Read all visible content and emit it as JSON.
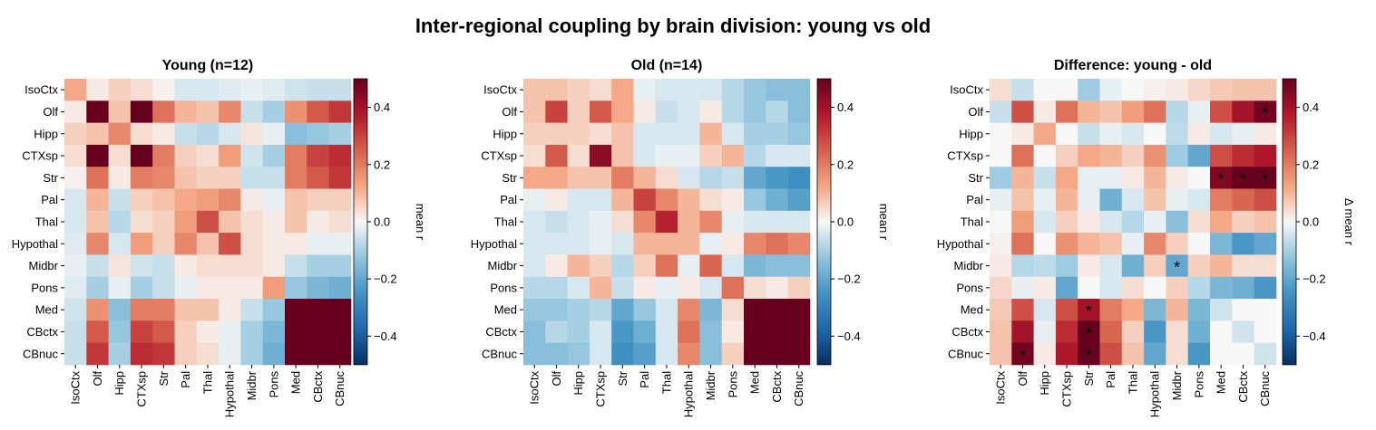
{
  "figure": {
    "title": "Inter-regional coupling by brain division: young vs old"
  },
  "chart_data": [
    {
      "type": "heatmap",
      "title": "Young (n=12)",
      "regions": [
        "IsoCtx",
        "Olf",
        "Hipp",
        "CTXsp",
        "Str",
        "Pal",
        "Thal",
        "Hypothal",
        "Midbr",
        "Pons",
        "Med",
        "CBctx",
        "CBnuc"
      ],
      "vmin": -0.5,
      "vmax": 0.5,
      "colorbar_label": "mean r",
      "colorbar_ticks": [
        -0.4,
        -0.2,
        0.0,
        0.2,
        0.4
      ],
      "colorbar_tick_labels": [
        "−0.4",
        "−0.2",
        "0.0",
        "0.2",
        "0.4"
      ],
      "values": [
        [
          0.12,
          0.02,
          0.06,
          0.04,
          0.01,
          -0.04,
          -0.04,
          -0.03,
          -0.02,
          -0.03,
          -0.05,
          -0.06,
          -0.06
        ],
        [
          0.02,
          0.55,
          0.08,
          0.55,
          0.22,
          0.1,
          0.08,
          0.18,
          -0.06,
          -0.1,
          0.16,
          0.26,
          0.32
        ],
        [
          0.06,
          0.08,
          0.18,
          0.04,
          0.02,
          -0.06,
          -0.08,
          -0.04,
          0.03,
          -0.02,
          -0.14,
          -0.12,
          -0.1
        ],
        [
          0.04,
          0.55,
          0.04,
          0.5,
          0.2,
          0.06,
          0.04,
          0.14,
          -0.05,
          -0.1,
          0.2,
          0.3,
          0.34
        ],
        [
          0.01,
          0.22,
          0.02,
          0.2,
          0.18,
          0.08,
          0.06,
          0.06,
          -0.06,
          -0.06,
          0.2,
          0.26,
          0.32
        ],
        [
          -0.04,
          0.1,
          -0.06,
          0.06,
          0.08,
          0.12,
          0.14,
          0.18,
          0.02,
          -0.02,
          0.08,
          0.06,
          0.06
        ],
        [
          -0.04,
          0.08,
          -0.08,
          0.04,
          0.06,
          0.14,
          0.28,
          0.08,
          0.04,
          0.02,
          0.08,
          0.02,
          0.04
        ],
        [
          -0.03,
          0.18,
          -0.04,
          0.14,
          0.06,
          0.18,
          0.08,
          0.28,
          0.04,
          0.02,
          0.02,
          -0.02,
          -0.02
        ],
        [
          -0.02,
          -0.06,
          0.03,
          -0.05,
          -0.06,
          0.02,
          0.04,
          0.04,
          0.04,
          0.02,
          -0.06,
          -0.1,
          -0.1
        ],
        [
          -0.03,
          -0.1,
          -0.02,
          -0.1,
          -0.06,
          -0.02,
          0.02,
          0.02,
          0.02,
          0.14,
          -0.12,
          -0.16,
          -0.18
        ],
        [
          -0.05,
          0.16,
          -0.14,
          0.2,
          0.2,
          0.08,
          0.08,
          0.02,
          -0.06,
          -0.12,
          0.5,
          0.55,
          0.55
        ],
        [
          -0.06,
          0.26,
          -0.12,
          0.3,
          0.26,
          0.06,
          0.02,
          -0.02,
          -0.1,
          -0.16,
          0.55,
          0.55,
          0.55
        ],
        [
          -0.06,
          0.32,
          -0.1,
          0.34,
          0.32,
          0.06,
          0.04,
          -0.02,
          -0.1,
          -0.18,
          0.55,
          0.55,
          0.55
        ]
      ]
    },
    {
      "type": "heatmap",
      "title": "Old (n=14)",
      "regions": [
        "IsoCtx",
        "Olf",
        "Hipp",
        "CTXsp",
        "Str",
        "Pal",
        "Thal",
        "Hypothal",
        "Midbr",
        "Pons",
        "Med",
        "CBctx",
        "CBnuc"
      ],
      "vmin": -0.5,
      "vmax": 0.5,
      "colorbar_label": "mean r",
      "colorbar_ticks": [
        -0.4,
        -0.2,
        0.0,
        0.2,
        0.4
      ],
      "colorbar_tick_labels": [
        "−0.4",
        "−0.2",
        "0.0",
        "0.2",
        "0.4"
      ],
      "values": [
        [
          0.08,
          0.08,
          0.06,
          0.04,
          0.12,
          -0.02,
          -0.04,
          -0.04,
          -0.04,
          -0.08,
          -0.12,
          -0.14,
          -0.14
        ],
        [
          0.08,
          0.3,
          0.06,
          0.26,
          0.12,
          0.02,
          -0.06,
          -0.04,
          0.02,
          -0.08,
          -0.12,
          -0.08,
          -0.14
        ],
        [
          0.06,
          0.06,
          0.06,
          0.04,
          0.08,
          -0.04,
          -0.04,
          -0.04,
          0.1,
          -0.04,
          -0.1,
          -0.1,
          -0.12
        ],
        [
          0.04,
          0.26,
          0.04,
          0.44,
          0.08,
          -0.04,
          -0.02,
          -0.02,
          0.06,
          0.1,
          -0.08,
          -0.04,
          -0.04
        ],
        [
          0.12,
          0.12,
          0.08,
          0.08,
          0.2,
          0.1,
          0.04,
          -0.04,
          -0.08,
          -0.06,
          -0.2,
          -0.24,
          -0.26
        ],
        [
          -0.02,
          0.02,
          -0.04,
          -0.04,
          0.1,
          0.3,
          0.18,
          0.1,
          0.04,
          0.02,
          -0.12,
          -0.18,
          -0.22
        ],
        [
          -0.04,
          -0.06,
          -0.04,
          -0.02,
          0.04,
          0.18,
          0.36,
          0.1,
          0.18,
          -0.02,
          -0.04,
          -0.04,
          -0.04
        ],
        [
          -0.04,
          -0.04,
          -0.04,
          -0.02,
          -0.04,
          0.1,
          0.1,
          0.1,
          -0.02,
          0.02,
          0.18,
          0.22,
          0.18
        ],
        [
          -0.04,
          0.02,
          0.1,
          0.06,
          -0.08,
          0.06,
          0.22,
          -0.02,
          0.24,
          -0.04,
          -0.16,
          -0.14,
          -0.14
        ],
        [
          -0.08,
          -0.08,
          -0.04,
          0.1,
          -0.06,
          0.02,
          -0.02,
          0.02,
          -0.04,
          0.22,
          0.04,
          0.02,
          0.06
        ],
        [
          -0.12,
          -0.12,
          -0.1,
          -0.08,
          -0.2,
          -0.12,
          -0.04,
          0.18,
          -0.16,
          0.04,
          0.55,
          0.55,
          0.55
        ],
        [
          -0.14,
          -0.08,
          -0.1,
          -0.04,
          -0.24,
          -0.18,
          -0.04,
          0.22,
          -0.14,
          0.02,
          0.55,
          0.55,
          0.55
        ],
        [
          -0.14,
          -0.14,
          -0.12,
          -0.04,
          -0.26,
          -0.22,
          -0.04,
          0.18,
          -0.14,
          0.06,
          0.55,
          0.55,
          0.55
        ]
      ]
    },
    {
      "type": "heatmap",
      "title": "Difference: young - old",
      "regions": [
        "IsoCtx",
        "Olf",
        "Hipp",
        "CTXsp",
        "Str",
        "Pal",
        "Thal",
        "Hypothal",
        "Midbr",
        "Pons",
        "Med",
        "CBctx",
        "CBnuc"
      ],
      "vmin": -0.5,
      "vmax": 0.5,
      "colorbar_label": "Δ mean r",
      "colorbar_ticks": [
        -0.4,
        -0.2,
        0.0,
        0.2,
        0.4
      ],
      "colorbar_tick_labels": [
        "−0.4",
        "−0.2",
        "0.0",
        "0.2",
        "0.4"
      ],
      "significance_marker": "*",
      "significant_cells": [
        [
          1,
          12
        ],
        [
          4,
          10
        ],
        [
          4,
          11
        ],
        [
          4,
          12
        ],
        [
          8,
          8
        ],
        [
          10,
          4
        ],
        [
          11,
          4
        ],
        [
          12,
          1
        ],
        [
          12,
          4
        ]
      ],
      "values": [
        [
          0.04,
          -0.06,
          0.0,
          0.0,
          -0.11,
          -0.02,
          0.0,
          0.01,
          0.02,
          0.05,
          0.07,
          0.08,
          0.08
        ],
        [
          -0.06,
          0.28,
          0.02,
          0.22,
          0.1,
          0.08,
          0.14,
          0.22,
          -0.08,
          -0.02,
          0.28,
          0.4,
          0.48
        ],
        [
          0.0,
          0.02,
          0.12,
          0.0,
          -0.06,
          -0.02,
          -0.04,
          0.0,
          -0.07,
          0.02,
          -0.04,
          -0.02,
          0.02
        ],
        [
          0.0,
          0.22,
          0.0,
          0.06,
          0.12,
          0.1,
          0.06,
          0.16,
          -0.11,
          -0.2,
          0.28,
          0.34,
          0.38
        ],
        [
          -0.11,
          0.1,
          -0.06,
          0.12,
          -0.02,
          -0.02,
          0.02,
          0.1,
          0.02,
          0.0,
          0.46,
          0.5,
          0.58
        ],
        [
          -0.02,
          0.08,
          -0.02,
          0.1,
          -0.02,
          -0.18,
          -0.04,
          0.08,
          -0.02,
          -0.04,
          0.2,
          0.24,
          0.28
        ],
        [
          0.0,
          0.14,
          -0.04,
          0.06,
          0.02,
          -0.04,
          -0.08,
          -0.02,
          -0.14,
          0.04,
          0.12,
          0.06,
          0.08
        ],
        [
          0.01,
          0.22,
          0.0,
          0.16,
          0.1,
          0.08,
          -0.02,
          0.18,
          0.06,
          0.0,
          -0.16,
          -0.24,
          -0.2
        ],
        [
          0.02,
          -0.08,
          -0.07,
          -0.11,
          0.02,
          -0.04,
          -0.18,
          0.06,
          -0.2,
          0.06,
          0.1,
          0.04,
          0.04
        ],
        [
          0.05,
          -0.02,
          0.02,
          -0.2,
          0.0,
          -0.04,
          0.04,
          0.0,
          0.06,
          -0.08,
          -0.16,
          -0.18,
          -0.24
        ],
        [
          0.07,
          0.28,
          -0.04,
          0.28,
          0.4,
          0.2,
          0.12,
          -0.16,
          0.1,
          -0.16,
          -0.05,
          0.0,
          0.0
        ],
        [
          0.08,
          0.4,
          -0.02,
          0.34,
          0.5,
          0.24,
          0.06,
          -0.24,
          0.04,
          -0.18,
          0.0,
          -0.05,
          0.0
        ],
        [
          0.08,
          0.48,
          0.02,
          0.38,
          0.58,
          0.28,
          0.08,
          -0.2,
          0.04,
          -0.24,
          0.0,
          0.0,
          -0.05
        ]
      ]
    }
  ]
}
